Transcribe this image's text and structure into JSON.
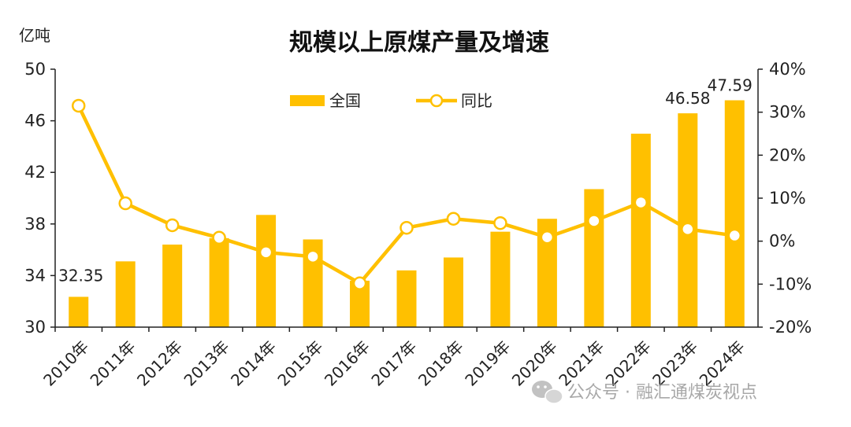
{
  "chart_data": {
    "type": "bar+line",
    "title": "规模以上原煤产量及增速",
    "y_left_unit": "亿吨",
    "categories": [
      "2010年",
      "2011年",
      "2012年",
      "2013年",
      "2014年",
      "2015年",
      "2016年",
      "2017年",
      "2018年",
      "2019年",
      "2020年",
      "2021年",
      "2022年",
      "2023年",
      "2024年"
    ],
    "series": [
      {
        "name": "全国",
        "type": "bar",
        "axis": "left",
        "color": "#FFC000",
        "values": [
          32.35,
          35.1,
          36.4,
          36.9,
          38.7,
          36.8,
          33.6,
          34.4,
          35.4,
          37.4,
          38.4,
          40.7,
          45.0,
          46.58,
          47.59
        ]
      },
      {
        "name": "同比",
        "type": "line",
        "axis": "right",
        "color": "#FFC000",
        "values": [
          31.5,
          8.8,
          3.7,
          0.8,
          -2.6,
          -3.6,
          -9.8,
          3.1,
          5.2,
          4.2,
          0.9,
          4.7,
          9.0,
          2.8,
          1.3
        ]
      }
    ],
    "y_left": {
      "min": 30,
      "max": 50,
      "ticks": [
        30,
        34,
        38,
        42,
        46,
        50
      ]
    },
    "y_right": {
      "min": -20,
      "max": 40,
      "ticks": [
        -20,
        -10,
        0,
        10,
        20,
        30,
        40
      ],
      "format": "percent"
    },
    "data_labels": [
      {
        "index": 0,
        "series": "全国",
        "text": "32.35"
      },
      {
        "index": 13,
        "series": "全国",
        "text": "46.58"
      },
      {
        "index": 14,
        "series": "全国",
        "text": "47.59"
      }
    ],
    "legend_position": "top-center",
    "grid": false
  },
  "watermark": {
    "icon": "wechat-icon",
    "text": "公众号 · 融汇通煤炭视点"
  }
}
